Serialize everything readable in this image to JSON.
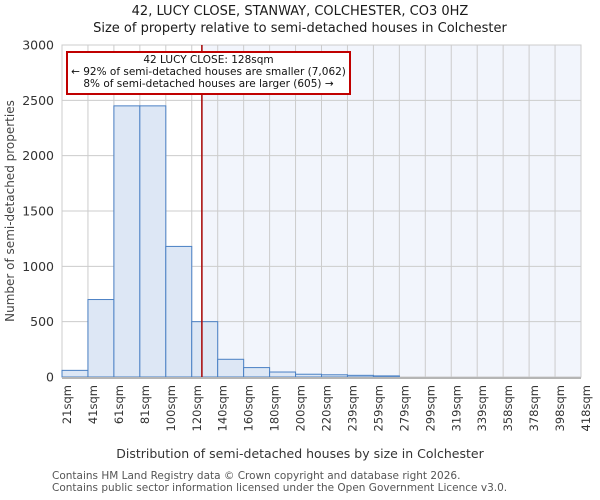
{
  "page": {
    "title": "42, LUCY CLOSE, STANWAY, COLCHESTER, CO3 0HZ",
    "subtitle": "Size of property relative to semi-detached houses in Colchester"
  },
  "annotation": {
    "line1": "42 LUCY CLOSE: 128sqm",
    "line2": "← 92% of semi-detached houses are smaller (7,062)",
    "line3": "8% of semi-detached houses are larger (605) →"
  },
  "footer": {
    "line1": "Contains HM Land Registry data © Crown copyright and database right 2026.",
    "line2": "Contains public sector information licensed under the Open Government Licence v3.0."
  },
  "chart_data": {
    "type": "bar",
    "title": "42, LUCY CLOSE, STANWAY, COLCHESTER, CO3 0HZ",
    "subtitle": "Size of property relative to semi-detached houses in Colchester",
    "xlabel": "Distribution of semi-detached houses by size in Colchester",
    "ylabel": "Number of semi-detached properties",
    "x_min_sqm": 21,
    "x_max_sqm": 418,
    "bin_edges_sqm": [
      21,
      41,
      61,
      81,
      100,
      120,
      140,
      160,
      180,
      200,
      220,
      239,
      259,
      279,
      299,
      319,
      339,
      358,
      378,
      398,
      418
    ],
    "x_tick_labels": [
      "21sqm",
      "41sqm",
      "61sqm",
      "81sqm",
      "100sqm",
      "120sqm",
      "140sqm",
      "160sqm",
      "180sqm",
      "200sqm",
      "220sqm",
      "239sqm",
      "259sqm",
      "279sqm",
      "299sqm",
      "319sqm",
      "339sqm",
      "358sqm",
      "378sqm",
      "398sqm",
      "418sqm"
    ],
    "values": [
      60,
      700,
      2450,
      2450,
      1180,
      500,
      160,
      85,
      45,
      25,
      20,
      15,
      10,
      0,
      0,
      0,
      0,
      0,
      0,
      0
    ],
    "ylim": [
      0,
      3000
    ],
    "y_ticks": [
      0,
      500,
      1000,
      1500,
      2000,
      2500,
      3000
    ],
    "grid": true,
    "legend": "none",
    "marker": {
      "sqm": 128,
      "label": "42 LUCY CLOSE: 128sqm",
      "pct_smaller": "92%",
      "count_smaller": "7,062",
      "pct_larger": "8%",
      "count_larger": "605"
    },
    "colors": {
      "bar_fill": "#dde7f5",
      "bar_edge": "#4a80c4",
      "grid": "#cccccc",
      "axis_line": "#b5b5b5",
      "marker_line": "#aa1111",
      "shade_right_of_marker": "#f2f5fc",
      "tick_text": "#333333",
      "axis_label_text": "#444444"
    }
  }
}
